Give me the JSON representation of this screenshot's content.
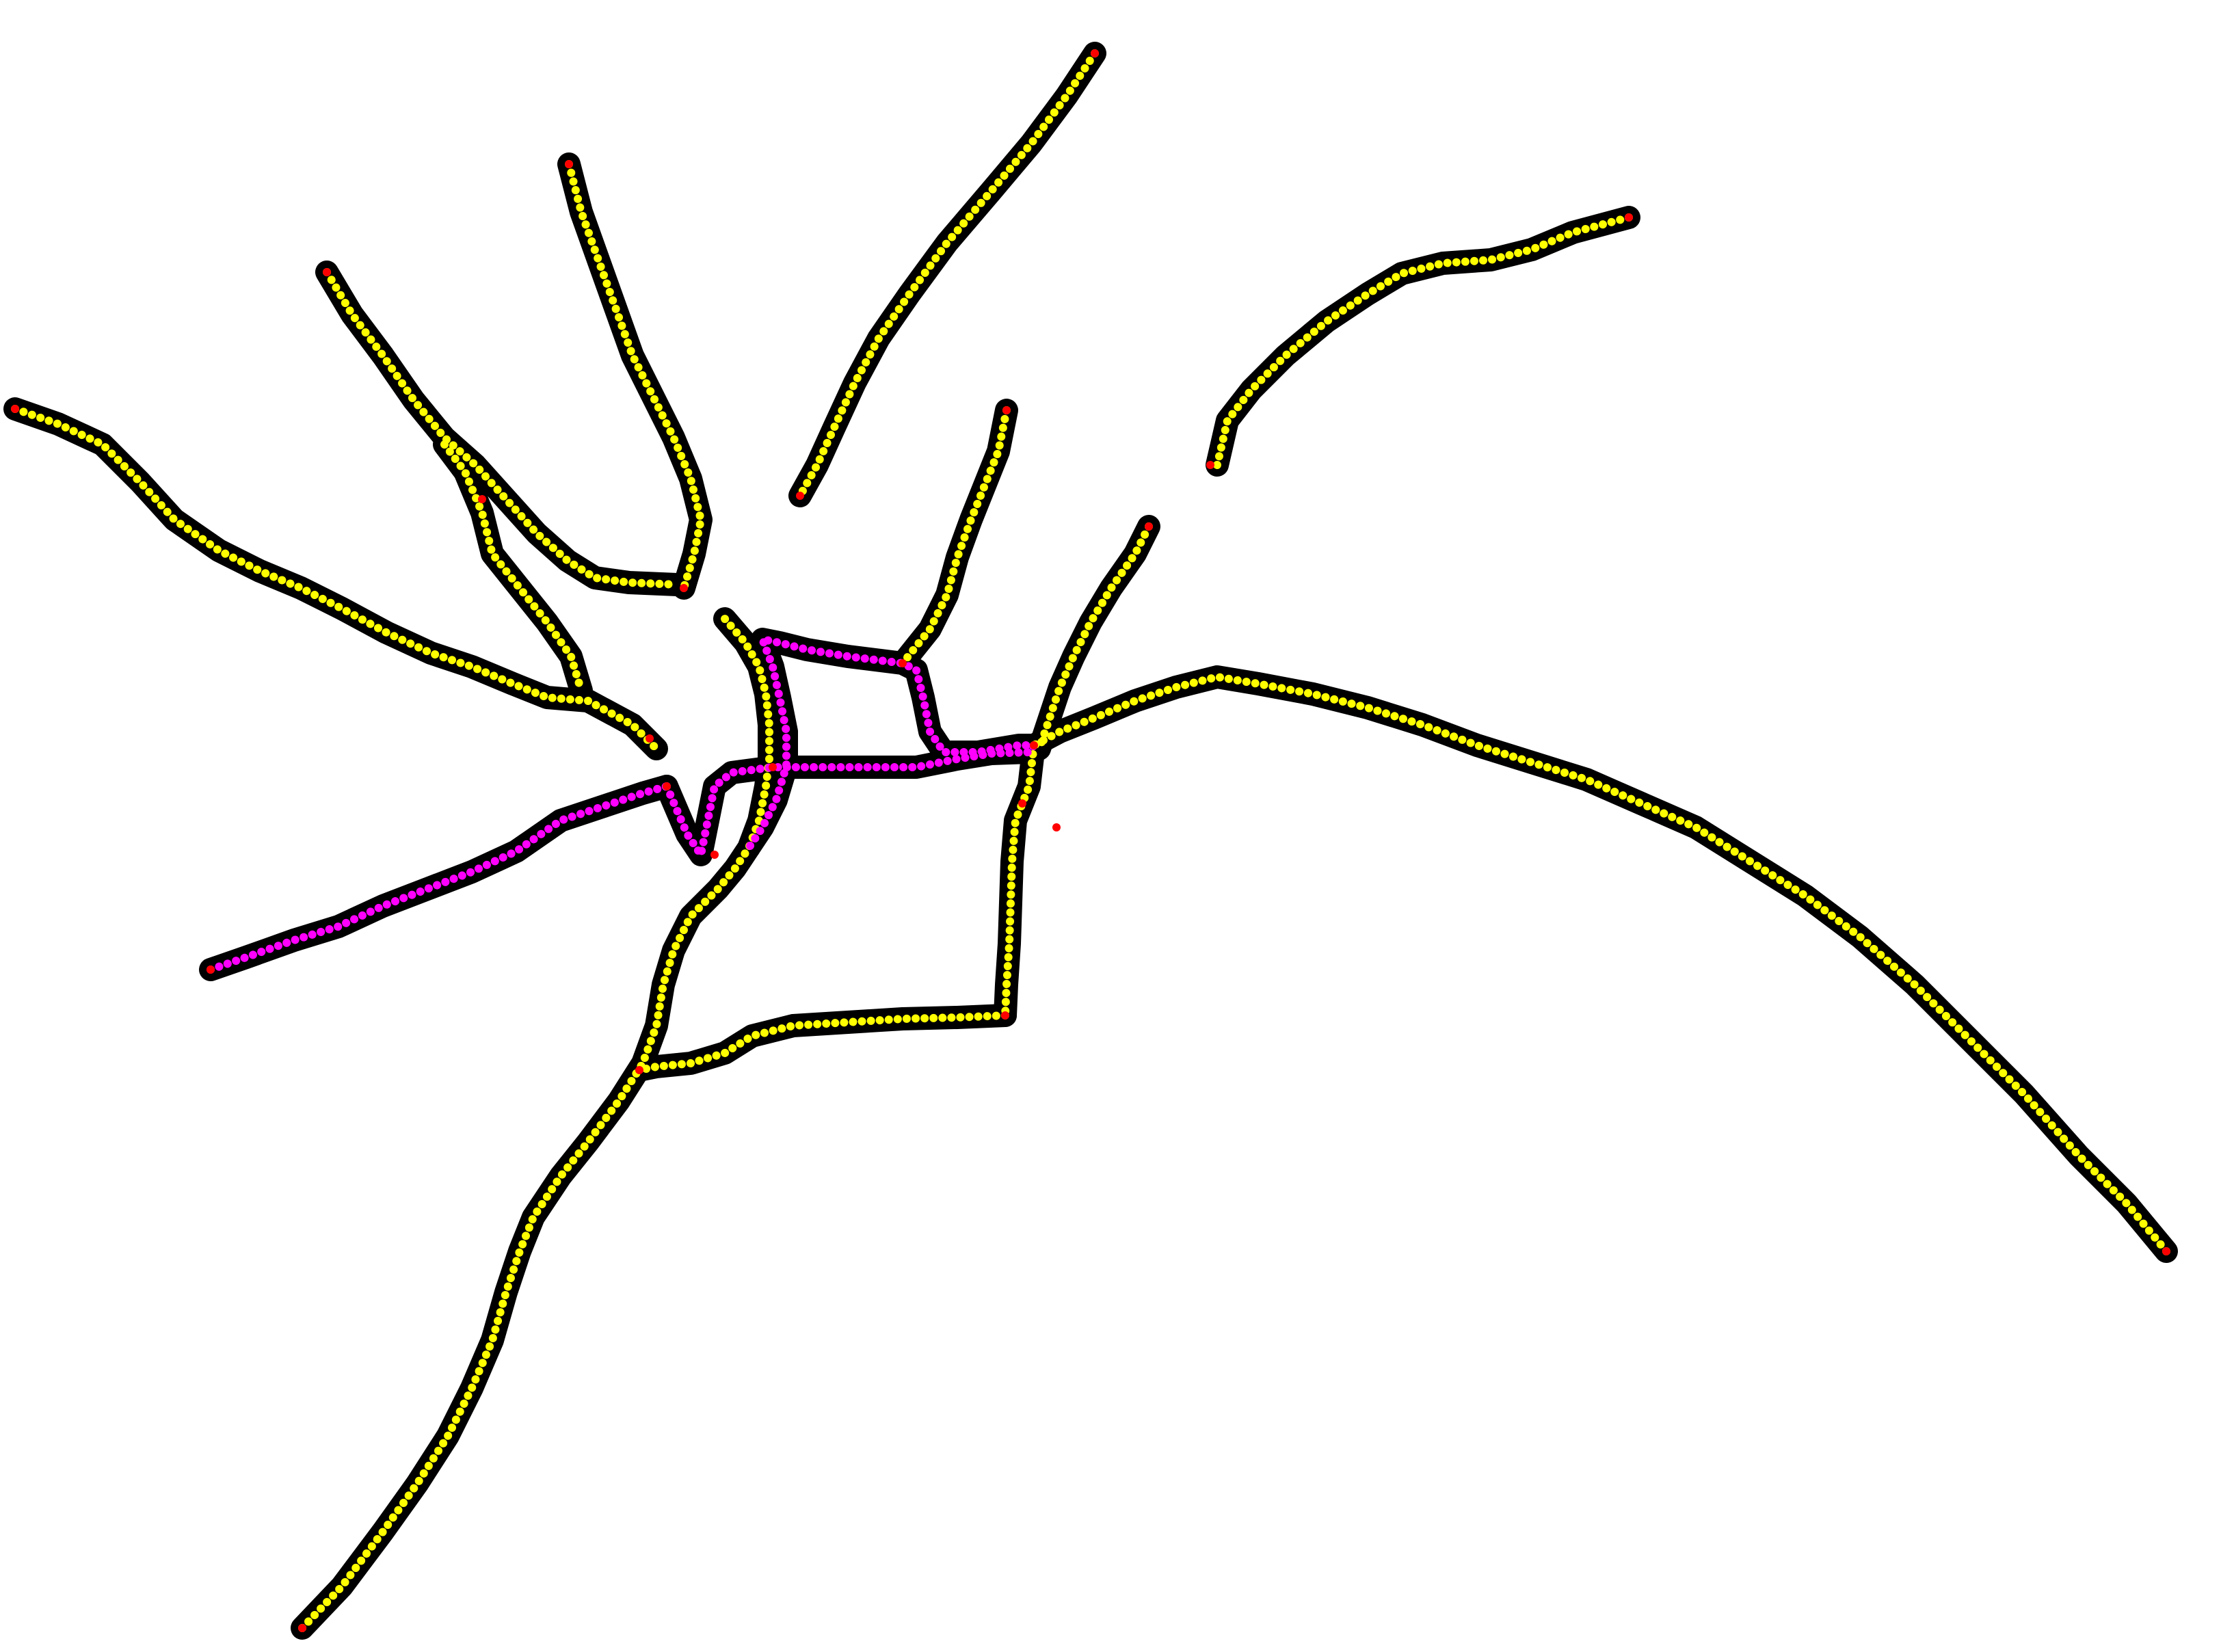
{
  "graph": {
    "colors": {
      "background": "#ffffff",
      "outline": "#000000",
      "primary_branch": "#ffff00",
      "shortest_path": "#ff00ff",
      "node": "#ff0000"
    },
    "node_marker": "red-dot",
    "branches": [
      {
        "id": "branch-top-right-long",
        "kind": "primary_branch"
      },
      {
        "id": "branch-top-center",
        "kind": "primary_branch"
      },
      {
        "id": "branch-upper-left",
        "kind": "primary_branch"
      },
      {
        "id": "branch-far-left",
        "kind": "primary_branch"
      },
      {
        "id": "branch-upper-left-inner",
        "kind": "primary_branch"
      },
      {
        "id": "branch-top-right-curve",
        "kind": "primary_branch"
      },
      {
        "id": "branch-center-right",
        "kind": "primary_branch"
      },
      {
        "id": "branch-right-short",
        "kind": "primary_branch"
      },
      {
        "id": "branch-long-right",
        "kind": "primary_branch"
      },
      {
        "id": "branch-bottom-left",
        "kind": "primary_branch"
      },
      {
        "id": "branch-loop-right",
        "kind": "primary_branch"
      },
      {
        "id": "branch-loop-bottom",
        "kind": "primary_branch"
      },
      {
        "id": "branch-left-magenta",
        "kind": "shortest_path"
      },
      {
        "id": "branch-center-magenta",
        "kind": "shortest_path"
      }
    ]
  }
}
